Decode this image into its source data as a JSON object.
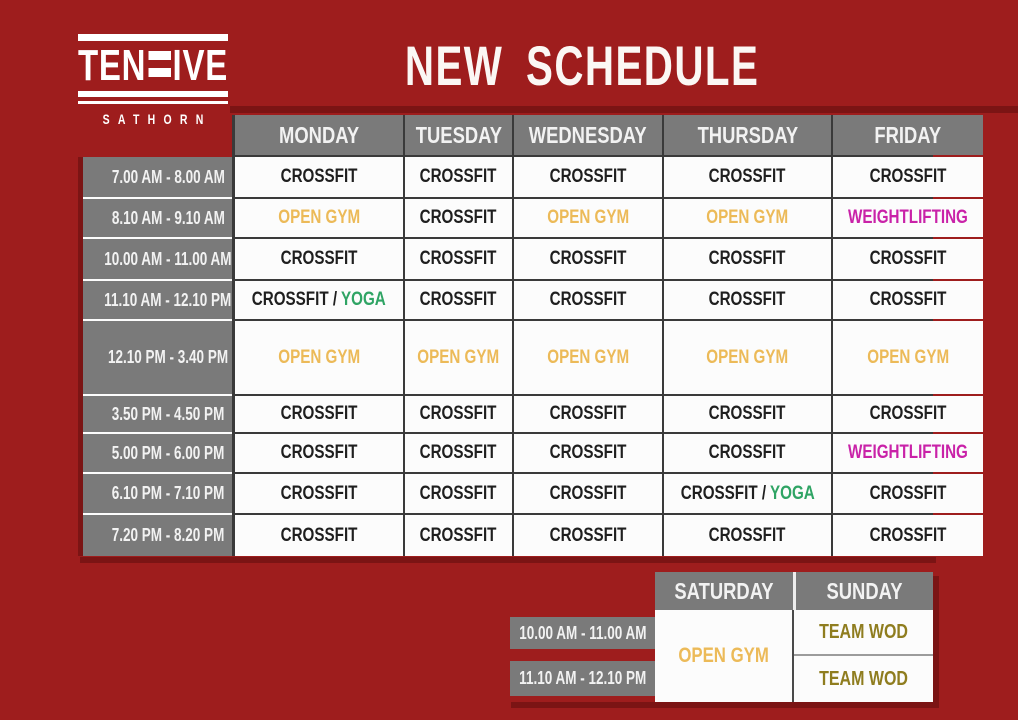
{
  "brand": {
    "wordmark_left": "TEN",
    "wordmark_right": "IVE",
    "stylized_letter_icon": "f-bars-icon",
    "subtitle": "SATHORN"
  },
  "title": "NEW SCHEDULE",
  "palette": {
    "background": "#9e1d1d",
    "shadow": "#7b1414",
    "cell_gray": "#7a7a7a",
    "cell_white": "#fcfcfc",
    "grid_line": "#3a3a3a",
    "crossfit": "#1f1f1f",
    "open_gym": "#ecba58",
    "weightlifting": "#c922a8",
    "yoga": "#2fa464",
    "team_wod": "#8f7d1f"
  },
  "week_table": {
    "day_headers": [
      "MONDAY",
      "TUESDAY",
      "WEDNESDAY",
      "THURSDAY",
      "FRIDAY"
    ],
    "rows": [
      {
        "time": "7.00 AM - 8.00 AM",
        "cells": [
          "CROSSFIT",
          "CROSSFIT",
          "CROSSFIT",
          "CROSSFIT",
          "CROSSFIT"
        ]
      },
      {
        "time": "8.10 AM - 9.10 AM",
        "cells": [
          "OPEN GYM",
          "CROSSFIT",
          "OPEN GYM",
          "OPEN GYM",
          "WEIGHTLIFTING"
        ]
      },
      {
        "time": "10.00 AM - 11.00 AM",
        "cells": [
          "CROSSFIT",
          "CROSSFIT",
          "CROSSFIT",
          "CROSSFIT",
          "CROSSFIT"
        ]
      },
      {
        "time": "11.10 AM - 12.10 PM",
        "cells": [
          "CROSSFIT / YOGA",
          "CROSSFIT",
          "CROSSFIT",
          "CROSSFIT",
          "CROSSFIT"
        ]
      },
      {
        "time": "12.10 PM - 3.40 PM",
        "cells": [
          "OPEN GYM",
          "OPEN GYM",
          "OPEN GYM",
          "OPEN GYM",
          "OPEN GYM"
        ]
      },
      {
        "time": "3.50 PM - 4.50 PM",
        "cells": [
          "CROSSFIT",
          "CROSSFIT",
          "CROSSFIT",
          "CROSSFIT",
          "CROSSFIT"
        ]
      },
      {
        "time": "5.00 PM - 6.00 PM",
        "cells": [
          "CROSSFIT",
          "CROSSFIT",
          "CROSSFIT",
          "CROSSFIT",
          "WEIGHTLIFTING"
        ]
      },
      {
        "time": "6.10 PM - 7.10 PM",
        "cells": [
          "CROSSFIT",
          "CROSSFIT",
          "CROSSFIT",
          "CROSSFIT / YOGA",
          "CROSSFIT"
        ]
      },
      {
        "time": "7.20 PM - 8.20 PM",
        "cells": [
          "CROSSFIT",
          "CROSSFIT",
          "CROSSFIT",
          "CROSSFIT",
          "CROSSFIT"
        ]
      }
    ]
  },
  "weekend_table": {
    "day_headers": [
      "SATURDAY",
      "SUNDAY"
    ],
    "time_rows": [
      "10.00 AM - 11.00 AM",
      "11.10 AM - 12.10 PM"
    ],
    "saturday_all_day": "OPEN GYM",
    "sunday_cells": [
      "TEAM WOD",
      "TEAM WOD"
    ]
  }
}
